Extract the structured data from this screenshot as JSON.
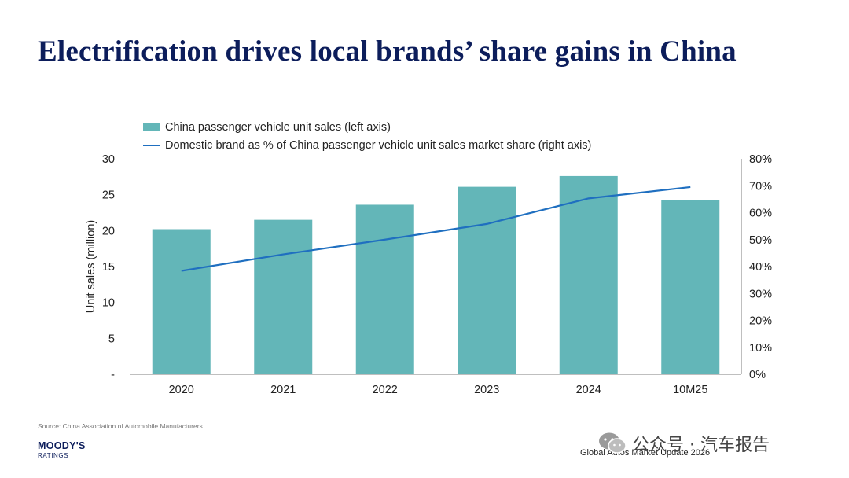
{
  "title": "Electrification drives local brands’ share gains in China",
  "legend": {
    "bar_label": "China passenger vehicle unit sales (left axis)",
    "line_label": "Domestic brand as % of China passenger vehicle unit sales market share (right axis)"
  },
  "source": "Source: China Association of Automobile Manufacturers",
  "logo": {
    "main": "MOODY'S",
    "sub": "RATINGS"
  },
  "footer": "Global Autos Market Update 2026",
  "watermark": {
    "text": "公众号 · 汽车报告",
    "icon": "wechat-icon"
  },
  "colors": {
    "bar": "#63b6b8",
    "line": "#1f6fc0",
    "title": "#0c1d5b"
  },
  "chart_data": {
    "type": "bar",
    "categories": [
      "2020",
      "2021",
      "2022",
      "2023",
      "2024",
      "10M25"
    ],
    "series": [
      {
        "name": "China passenger vehicle unit sales (left axis)",
        "type": "bar",
        "axis": "left",
        "values": [
          20.2,
          21.5,
          23.6,
          26.1,
          27.6,
          24.2
        ]
      },
      {
        "name": "Domestic brand as % of China passenger vehicle unit sales market share (right axis)",
        "type": "line",
        "axis": "right",
        "values": [
          38.4,
          44.5,
          50.0,
          55.8,
          65.3,
          69.5
        ]
      }
    ],
    "ylabel": "Unit sales (million)",
    "ylim": [
      0,
      30
    ],
    "yticks": [
      "-",
      "5",
      "10",
      "15",
      "20",
      "25",
      "30"
    ],
    "y2lim": [
      0,
      80
    ],
    "y2ticks": [
      "0%",
      "10%",
      "20%",
      "30%",
      "40%",
      "50%",
      "60%",
      "70%",
      "80%"
    ],
    "grid": false,
    "legend_position": "top-left"
  }
}
